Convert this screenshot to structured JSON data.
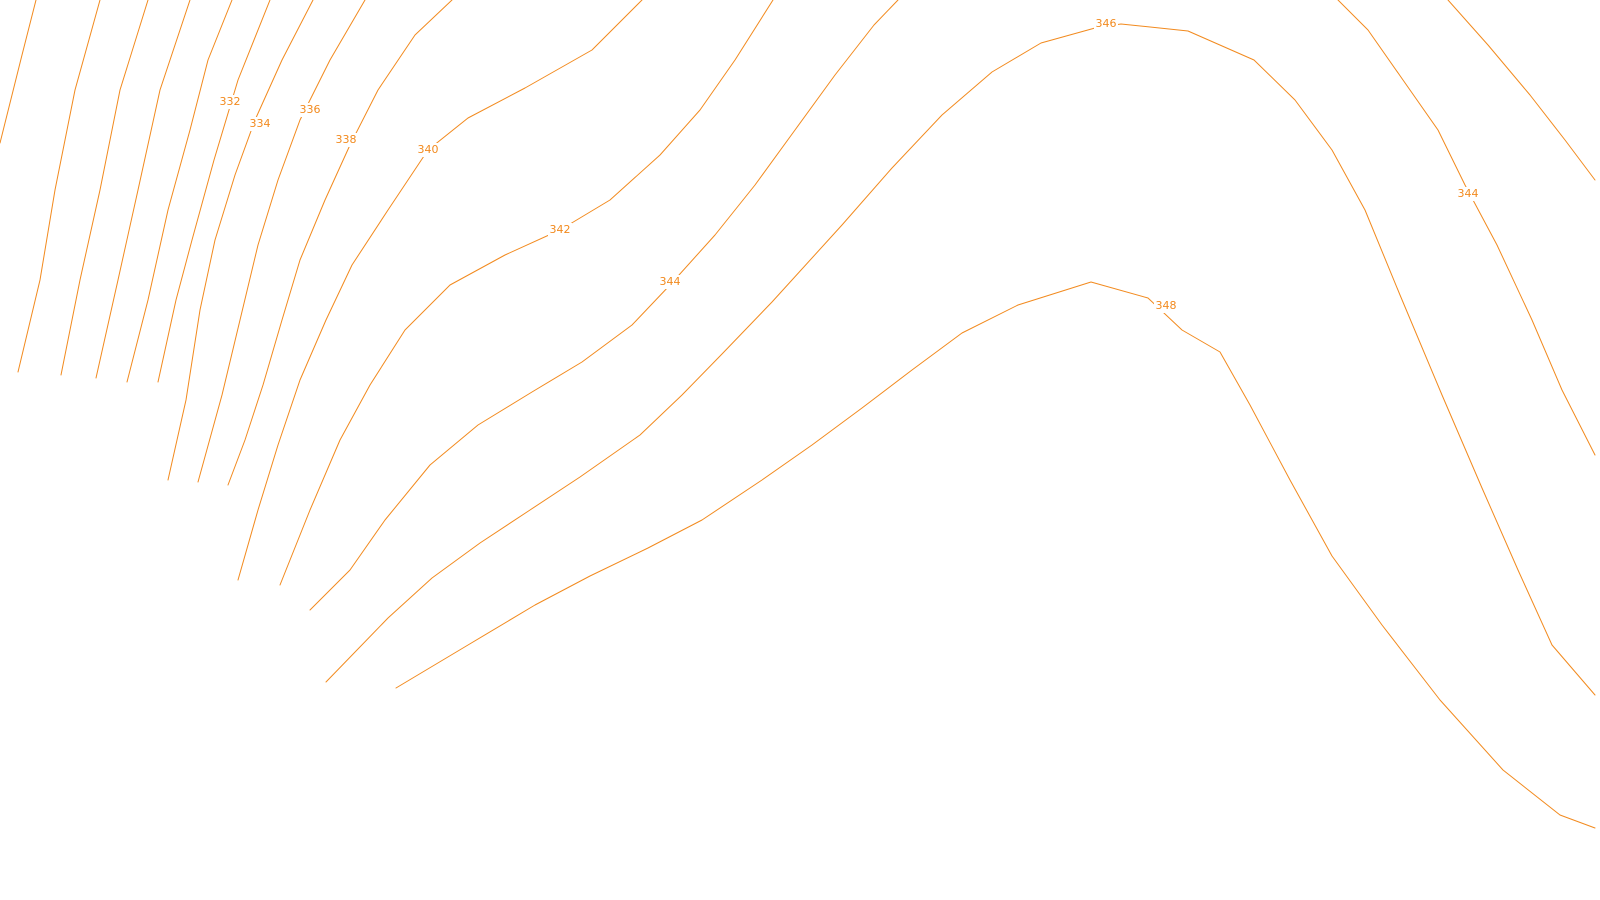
{
  "map": {
    "contour_color": "#f28a1e",
    "background": "#ffffff",
    "labels": [
      {
        "id": "l332",
        "text": "332"
      },
      {
        "id": "l334",
        "text": "334"
      },
      {
        "id": "l336",
        "text": "336"
      },
      {
        "id": "l338",
        "text": "338"
      },
      {
        "id": "l340",
        "text": "340"
      },
      {
        "id": "l342",
        "text": "342"
      },
      {
        "id": "l344a",
        "text": "344"
      },
      {
        "id": "l346",
        "text": "346"
      },
      {
        "id": "l348",
        "text": "348"
      },
      {
        "id": "l344b",
        "text": "344"
      }
    ]
  }
}
